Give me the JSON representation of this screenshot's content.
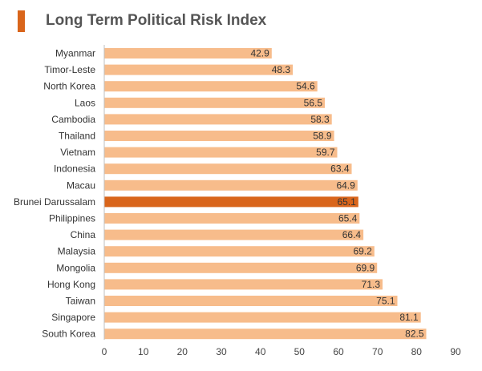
{
  "title": "Long Term Political Risk Index",
  "colors": {
    "accent": "#d9651b",
    "bar": "#f7bc8b",
    "bar_highlight": "#d9651b",
    "axis": "#bfbfbf",
    "text": "#333333"
  },
  "chart_data": {
    "type": "bar",
    "orientation": "horizontal",
    "title": "Long Term Political Risk Index",
    "xlabel": "",
    "ylabel": "",
    "xlim": [
      0,
      90
    ],
    "ticks": [
      0,
      10,
      20,
      30,
      40,
      50,
      60,
      70,
      80,
      90
    ],
    "categories": [
      "Myanmar",
      "Timor-Leste",
      "North Korea",
      "Laos",
      "Cambodia",
      "Thailand",
      "Vietnam",
      "Indonesia",
      "Macau",
      "Brunei Darussalam",
      "Philippines",
      "China",
      "Malaysia",
      "Mongolia",
      "Hong Kong",
      "Taiwan",
      "Singapore",
      "South Korea"
    ],
    "values": [
      42.9,
      48.3,
      54.6,
      56.5,
      58.3,
      58.9,
      59.7,
      63.4,
      64.9,
      65.1,
      65.4,
      66.4,
      69.2,
      69.9,
      71.3,
      75.1,
      81.1,
      82.5
    ],
    "value_labels": [
      "42.9",
      "48.3",
      "54.6",
      "56.5",
      "58.3",
      "58.9",
      "59.7",
      "63.4",
      "64.9",
      "65.1",
      "65.4",
      "66.4",
      "69.2",
      "69.9",
      "71.3",
      "75.1",
      "81.1",
      "82.5"
    ],
    "highlight": "Brunei Darussalam",
    "grid": false,
    "legend": "none"
  }
}
